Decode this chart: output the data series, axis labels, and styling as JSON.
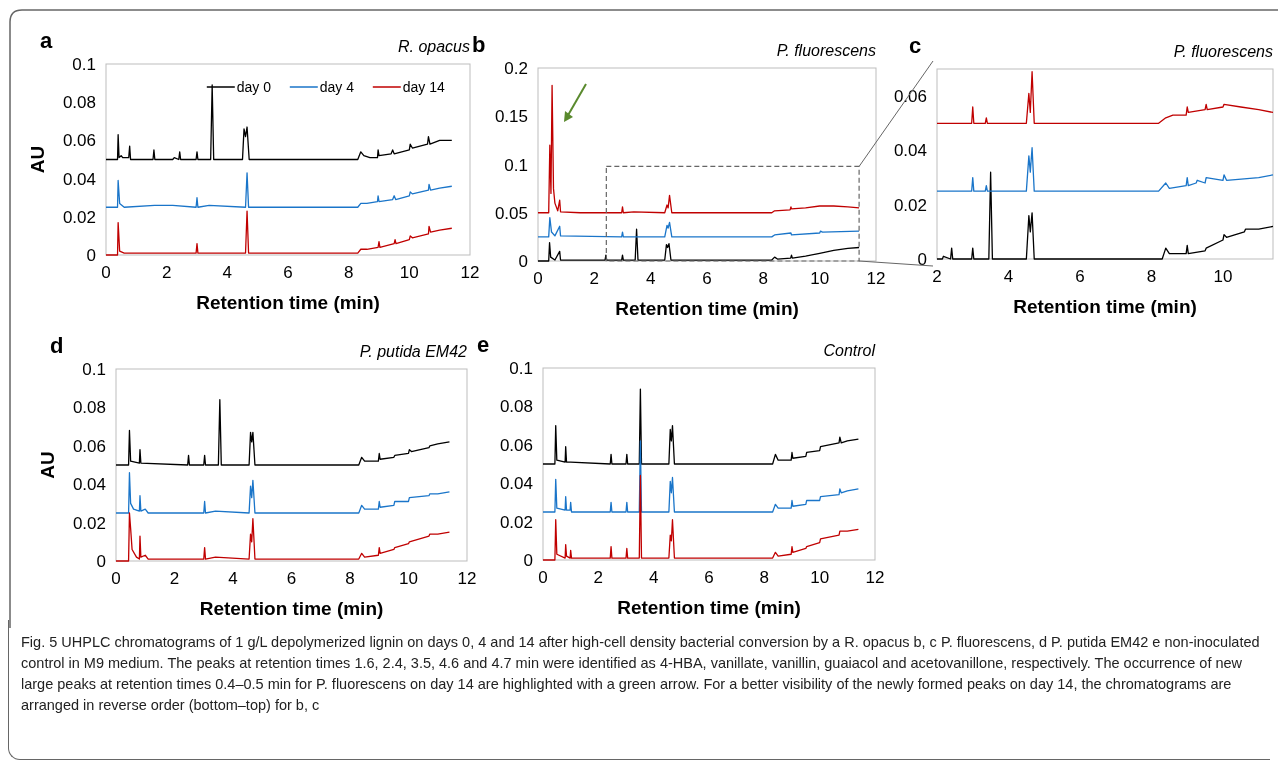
{
  "chart_data": [
    {
      "type": "line",
      "title": "a",
      "subtitle": "R. opacus",
      "xlabel": "Retention time (min)",
      "ylabel": "AU",
      "xlim": [
        0,
        12
      ],
      "xticks": [
        0,
        2,
        4,
        6,
        8,
        10,
        12
      ],
      "ylim": [
        0,
        0.1
      ],
      "yticks": [
        0,
        0.02,
        0.04,
        0.06,
        0.08,
        0.1
      ],
      "legend": "top right",
      "annotations": [
        "Fig. 5 UHPLC chromatograms of 1 g/L depolymerized lignin on days 0, 4 and 14 after high-cell density bacterial conversion by a R. opacus b, c P. fluorescens, d P. putida EM42 e non-inoculated control in M9 medium. The peaks at retention times 1.6, 2.4, 3.5, 4.6 and 4.7 min were identified as 4-HBA, vanillate, vanillin, guaiacol and acetovanillone, respectively. The occurrence of new large peaks at retention times 0.4–0.5 min for P. fluorescens on day 14 are highlighted with a green arrow. For a better visibility of the newly formed peaks on day 14, the chromatograms are arranged in reverse order (bottom–top) for b, c"
      ],
      "series": [
        {
          "name": "day 0",
          "color": "#000000",
          "x": [
            0,
            0.38,
            0.4,
            0.43,
            0.5,
            0.55,
            0.75,
            0.78,
            0.81,
            1.55,
            1.58,
            1.61,
            2.2,
            2.25,
            2.4,
            2.43,
            2.46,
            2.97,
            3.0,
            3.03,
            3.45,
            3.5,
            3.55,
            4.5,
            4.55,
            4.6,
            4.65,
            4.72,
            5.5,
            8.3,
            8.4,
            8.5,
            8.7,
            8.95,
            8.97,
            9.0,
            9.4,
            9.45,
            9.5,
            10.0,
            10.03,
            10.1,
            10.6,
            10.63,
            10.68,
            11.0,
            11.4
          ],
          "values": [
            0.05,
            0.05,
            0.063,
            0.051,
            0.052,
            0.051,
            0.051,
            0.057,
            0.05,
            0.05,
            0.055,
            0.05,
            0.05,
            0.051,
            0.05,
            0.054,
            0.05,
            0.05,
            0.054,
            0.05,
            0.05,
            0.089,
            0.05,
            0.05,
            0.066,
            0.062,
            0.067,
            0.05,
            0.05,
            0.05,
            0.054,
            0.052,
            0.051,
            0.051,
            0.055,
            0.052,
            0.053,
            0.055,
            0.053,
            0.055,
            0.058,
            0.056,
            0.058,
            0.062,
            0.058,
            0.06,
            0.06
          ]
        },
        {
          "name": "day 4",
          "color": "#1a75c9",
          "x": [
            0,
            0.38,
            0.4,
            0.45,
            0.6,
            1.6,
            2.2,
            2.97,
            3.0,
            3.03,
            3.4,
            4.6,
            4.65,
            4.7,
            8.3,
            8.4,
            8.6,
            8.95,
            8.97,
            9.0,
            9.45,
            9.5,
            9.55,
            10.0,
            10.03,
            10.1,
            10.63,
            10.65,
            10.7,
            11.0,
            11.4
          ],
          "values": [
            0.025,
            0.025,
            0.039,
            0.027,
            0.025,
            0.026,
            0.026,
            0.025,
            0.03,
            0.025,
            0.026,
            0.025,
            0.043,
            0.025,
            0.025,
            0.027,
            0.027,
            0.028,
            0.031,
            0.028,
            0.029,
            0.031,
            0.029,
            0.031,
            0.033,
            0.032,
            0.034,
            0.037,
            0.034,
            0.035,
            0.036
          ]
        },
        {
          "name": "day 14",
          "color": "#c00000",
          "x": [
            0,
            0.38,
            0.4,
            0.45,
            0.6,
            1.6,
            2.97,
            3.0,
            3.03,
            3.4,
            4.6,
            4.65,
            4.7,
            8.3,
            8.4,
            8.6,
            8.97,
            9.0,
            9.03,
            9.5,
            9.53,
            9.56,
            10.0,
            10.03,
            10.1,
            10.63,
            10.65,
            10.7,
            11.0,
            11.4
          ],
          "values": [
            0,
            0,
            0.017,
            0.002,
            0.001,
            0.001,
            0.001,
            0.006,
            0.001,
            0.001,
            0.001,
            0.023,
            0.001,
            0.001,
            0.003,
            0.003,
            0.004,
            0.007,
            0.004,
            0.006,
            0.008,
            0.006,
            0.008,
            0.01,
            0.009,
            0.011,
            0.015,
            0.012,
            0.013,
            0.014
          ]
        }
      ]
    },
    {
      "type": "line",
      "title": "b",
      "subtitle": "P. fluorescens",
      "xlabel": "Retention time (min)",
      "xlim": [
        0,
        12
      ],
      "xticks": [
        0,
        2,
        4,
        6,
        8,
        10,
        12
      ],
      "ylim": [
        0,
        0.2
      ],
      "yticks": [
        0,
        0.05,
        0.1,
        0.15,
        0.2
      ],
      "series": [
        {
          "color": "#000000",
          "x": [
            0,
            0.38,
            0.41,
            0.45,
            0.6,
            0.77,
            0.8,
            2.38,
            2.41,
            2.44,
            2.97,
            3.0,
            3.03,
            3.45,
            3.5,
            3.55,
            4.5,
            4.56,
            4.6,
            4.65,
            4.72,
            8.3,
            8.4,
            8.5,
            8.97,
            9.0,
            9.03,
            9.5,
            10.0,
            10.5,
            11.0,
            11.4
          ],
          "values": [
            0,
            0,
            0.019,
            0.004,
            0.001,
            0.01,
            0.001,
            0.001,
            0.006,
            0.001,
            0.001,
            0.006,
            0.001,
            0.001,
            0.033,
            0.001,
            0.001,
            0.017,
            0.014,
            0.018,
            0.001,
            0.001,
            0.004,
            0.002,
            0.003,
            0.006,
            0.003,
            0.005,
            0.008,
            0.011,
            0.013,
            0.014
          ]
        },
        {
          "color": "#1a75c9",
          "x": [
            0,
            0.38,
            0.42,
            0.48,
            0.6,
            0.77,
            0.8,
            2.97,
            3.0,
            3.03,
            4.5,
            4.58,
            4.62,
            4.67,
            4.75,
            8.3,
            8.4,
            8.98,
            9.0,
            10.0,
            10.03,
            10.1,
            11.4
          ],
          "values": [
            0.025,
            0.025,
            0.045,
            0.03,
            0.026,
            0.036,
            0.026,
            0.025,
            0.03,
            0.025,
            0.025,
            0.037,
            0.034,
            0.04,
            0.025,
            0.025,
            0.027,
            0.029,
            0.027,
            0.029,
            0.031,
            0.03,
            0.031
          ]
        },
        {
          "color": "#c00000",
          "x": [
            0,
            0.38,
            0.42,
            0.46,
            0.5,
            0.55,
            0.6,
            0.7,
            0.77,
            0.8,
            1.5,
            2.97,
            3.0,
            3.03,
            3.4,
            4.5,
            4.58,
            4.62,
            4.67,
            4.75,
            8.3,
            8.4,
            8.95,
            8.98,
            9.0,
            9.5,
            10.0,
            10.5,
            11.0,
            11.4
          ],
          "values": [
            0.05,
            0.05,
            0.12,
            0.07,
            0.182,
            0.075,
            0.06,
            0.052,
            0.063,
            0.051,
            0.05,
            0.05,
            0.056,
            0.05,
            0.051,
            0.05,
            0.058,
            0.055,
            0.068,
            0.05,
            0.05,
            0.052,
            0.053,
            0.056,
            0.054,
            0.055,
            0.057,
            0.057,
            0.056,
            0.055
          ]
        }
      ]
    },
    {
      "type": "line",
      "title": "c",
      "subtitle": "P. fluorescens",
      "xlabel": "Retention time (min)",
      "xlim": [
        2,
        11.4
      ],
      "xticks": [
        2,
        4,
        6,
        8,
        10
      ],
      "ylim": [
        0,
        0.07
      ],
      "yticks": [
        0,
        0.02,
        0.04,
        0.06
      ],
      "series": [
        {
          "color": "#000000",
          "x": [
            2,
            2.15,
            2.18,
            2.38,
            2.41,
            2.44,
            2.97,
            3.0,
            3.03,
            3.45,
            3.5,
            3.55,
            4.5,
            4.57,
            4.61,
            4.66,
            4.72,
            8.3,
            8.4,
            8.5,
            8.97,
            9.0,
            9.03,
            9.5,
            9.53,
            10.0,
            10.03,
            10.1,
            10.6,
            10.63,
            11.0,
            11.4
          ],
          "values": [
            0,
            0,
            0.001,
            0,
            0.004,
            0,
            0,
            0.004,
            0,
            0,
            0.032,
            0,
            0,
            0.016,
            0.01,
            0.017,
            0,
            0,
            0.004,
            0.002,
            0.002,
            0.005,
            0.002,
            0.003,
            0.004,
            0.007,
            0.009,
            0.008,
            0.01,
            0.011,
            0.011,
            0.012
          ]
        },
        {
          "color": "#1a75c9",
          "x": [
            2,
            2.97,
            3.0,
            3.03,
            3.35,
            3.38,
            3.41,
            4.5,
            4.57,
            4.61,
            4.66,
            4.72,
            8.2,
            8.4,
            8.5,
            8.97,
            9.0,
            9.03,
            9.25,
            9.28,
            9.5,
            9.53,
            10.0,
            10.03,
            10.1,
            11.0,
            11.4
          ],
          "values": [
            0.025,
            0.025,
            0.03,
            0.025,
            0.025,
            0.027,
            0.025,
            0.025,
            0.038,
            0.032,
            0.041,
            0.025,
            0.025,
            0.028,
            0.026,
            0.027,
            0.03,
            0.027,
            0.028,
            0.029,
            0.028,
            0.03,
            0.029,
            0.031,
            0.029,
            0.03,
            0.031
          ]
        },
        {
          "color": "#c00000",
          "x": [
            2,
            2.97,
            3.0,
            3.03,
            3.35,
            3.38,
            3.41,
            4.5,
            4.57,
            4.61,
            4.66,
            4.72,
            8.2,
            8.4,
            8.6,
            8.97,
            9.0,
            9.03,
            9.5,
            9.53,
            9.56,
            10.0,
            10.03,
            10.5,
            11.0,
            11.4
          ],
          "values": [
            0.05,
            0.05,
            0.056,
            0.05,
            0.05,
            0.052,
            0.05,
            0.05,
            0.061,
            0.054,
            0.069,
            0.05,
            0.05,
            0.052,
            0.053,
            0.053,
            0.056,
            0.054,
            0.055,
            0.057,
            0.055,
            0.056,
            0.057,
            0.056,
            0.055,
            0.054
          ]
        }
      ]
    },
    {
      "type": "line",
      "title": "d",
      "subtitle": "P. putida EM42",
      "xlabel": "Retention time (min)",
      "ylabel": "AU",
      "xlim": [
        0,
        12
      ],
      "xticks": [
        0,
        2,
        4,
        6,
        8,
        10,
        12
      ],
      "ylim": [
        0,
        0.1
      ],
      "yticks": [
        0,
        0.02,
        0.04,
        0.06,
        0.08,
        0.1
      ],
      "series": [
        {
          "color": "#000000",
          "x": [
            0,
            0.43,
            0.46,
            0.5,
            0.8,
            0.82,
            0.85,
            2.45,
            2.48,
            2.51,
            3.0,
            3.03,
            3.06,
            3.5,
            3.55,
            3.6,
            4.55,
            4.6,
            4.64,
            4.68,
            4.75,
            8.3,
            8.4,
            8.5,
            8.97,
            9.0,
            9.03,
            9.5,
            9.53,
            10.0,
            10.03,
            10.1,
            10.7,
            10.73,
            11.0,
            11.4
          ],
          "values": [
            0.05,
            0.05,
            0.068,
            0.052,
            0.051,
            0.058,
            0.051,
            0.05,
            0.055,
            0.05,
            0.05,
            0.055,
            0.05,
            0.05,
            0.084,
            0.05,
            0.05,
            0.067,
            0.062,
            0.067,
            0.05,
            0.05,
            0.054,
            0.052,
            0.052,
            0.056,
            0.053,
            0.054,
            0.055,
            0.056,
            0.058,
            0.057,
            0.059,
            0.06,
            0.061,
            0.062
          ]
        },
        {
          "color": "#1a75c9",
          "x": [
            0,
            0.43,
            0.46,
            0.5,
            0.6,
            0.8,
            0.82,
            0.85,
            1.0,
            1.1,
            3.0,
            3.03,
            3.06,
            3.4,
            4.55,
            4.6,
            4.64,
            4.68,
            4.75,
            8.3,
            8.4,
            8.5,
            8.97,
            9.0,
            9.03,
            9.5,
            9.53,
            10.0,
            10.03,
            10.7,
            10.73,
            11.0,
            11.4
          ],
          "values": [
            0.025,
            0.025,
            0.046,
            0.03,
            0.027,
            0.026,
            0.034,
            0.026,
            0.027,
            0.025,
            0.025,
            0.031,
            0.025,
            0.026,
            0.025,
            0.039,
            0.033,
            0.042,
            0.025,
            0.025,
            0.029,
            0.027,
            0.027,
            0.031,
            0.028,
            0.029,
            0.031,
            0.031,
            0.033,
            0.034,
            0.035,
            0.035,
            0.036
          ]
        },
        {
          "color": "#c00000",
          "x": [
            0,
            0.43,
            0.46,
            0.5,
            0.55,
            0.7,
            0.8,
            0.82,
            0.85,
            1.0,
            1.1,
            3.0,
            3.03,
            3.06,
            3.4,
            4.55,
            4.6,
            4.64,
            4.68,
            4.75,
            8.3,
            8.4,
            8.5,
            8.97,
            9.0,
            9.03,
            9.5,
            9.53,
            10.0,
            10.03,
            10.7,
            10.73,
            11.0,
            11.4
          ],
          "values": [
            0,
            0,
            0.025,
            0.017,
            0.006,
            0.002,
            0.001,
            0.013,
            0.002,
            0.003,
            0.001,
            0.001,
            0.007,
            0.001,
            0.002,
            0.001,
            0.014,
            0.01,
            0.022,
            0.001,
            0.001,
            0.004,
            0.002,
            0.003,
            0.007,
            0.004,
            0.006,
            0.007,
            0.009,
            0.01,
            0.013,
            0.014,
            0.014,
            0.015
          ]
        }
      ]
    },
    {
      "type": "line",
      "title": "e",
      "subtitle": "Control",
      "xlabel": "Retention time (min)",
      "xlim": [
        0,
        12
      ],
      "xticks": [
        0,
        2,
        4,
        6,
        8,
        10,
        12
      ],
      "ylim": [
        0,
        0.1
      ],
      "yticks": [
        0,
        0.02,
        0.04,
        0.06,
        0.08,
        0.1
      ],
      "series": [
        {
          "color": "#000000",
          "x": [
            0,
            0.43,
            0.46,
            0.5,
            0.8,
            0.82,
            0.85,
            1.0,
            2.43,
            2.46,
            2.49,
            3.0,
            3.03,
            3.06,
            3.48,
            3.52,
            3.56,
            4.55,
            4.6,
            4.64,
            4.68,
            4.75,
            8.3,
            8.4,
            8.5,
            8.97,
            9.0,
            9.03,
            9.5,
            9.53,
            10.0,
            10.03,
            10.7,
            10.73,
            10.78,
            11.0,
            11.4
          ],
          "values": [
            0.05,
            0.05,
            0.07,
            0.052,
            0.051,
            0.059,
            0.051,
            0.051,
            0.05,
            0.055,
            0.05,
            0.05,
            0.055,
            0.05,
            0.05,
            0.089,
            0.05,
            0.05,
            0.068,
            0.062,
            0.07,
            0.05,
            0.05,
            0.055,
            0.052,
            0.052,
            0.056,
            0.053,
            0.054,
            0.056,
            0.057,
            0.059,
            0.061,
            0.064,
            0.061,
            0.062,
            0.063
          ]
        },
        {
          "color": "#1a75c9",
          "x": [
            0,
            0.43,
            0.46,
            0.5,
            0.8,
            0.82,
            0.85,
            0.98,
            1.0,
            1.03,
            2.43,
            2.46,
            2.49,
            3.0,
            3.03,
            3.06,
            3.48,
            3.52,
            3.56,
            4.55,
            4.6,
            4.64,
            4.68,
            4.75,
            8.3,
            8.4,
            8.5,
            8.97,
            9.0,
            9.03,
            9.5,
            9.53,
            10.0,
            10.03,
            10.7,
            10.73,
            10.78,
            11.0,
            11.4
          ],
          "values": [
            0.025,
            0.025,
            0.042,
            0.027,
            0.026,
            0.033,
            0.026,
            0.026,
            0.03,
            0.025,
            0.025,
            0.03,
            0.025,
            0.025,
            0.03,
            0.025,
            0.025,
            0.062,
            0.025,
            0.025,
            0.041,
            0.035,
            0.043,
            0.025,
            0.025,
            0.029,
            0.027,
            0.027,
            0.031,
            0.028,
            0.029,
            0.031,
            0.031,
            0.033,
            0.034,
            0.037,
            0.035,
            0.036,
            0.037
          ]
        },
        {
          "color": "#c00000",
          "x": [
            0,
            0.43,
            0.46,
            0.5,
            0.8,
            0.82,
            0.85,
            0.98,
            1.0,
            1.03,
            2.43,
            2.46,
            2.49,
            3.0,
            3.03,
            3.06,
            3.48,
            3.52,
            3.56,
            4.55,
            4.6,
            4.64,
            4.68,
            4.75,
            8.3,
            8.4,
            8.5,
            8.97,
            9.0,
            9.03,
            9.5,
            9.53,
            10.0,
            10.03,
            10.7,
            10.73,
            11.0,
            11.4
          ],
          "values": [
            0,
            0,
            0.021,
            0.003,
            0.001,
            0.008,
            0.002,
            0.001,
            0.005,
            0.001,
            0.001,
            0.007,
            0.001,
            0.001,
            0.006,
            0.001,
            0.001,
            0.044,
            0.001,
            0.001,
            0.013,
            0.01,
            0.021,
            0.001,
            0.001,
            0.004,
            0.002,
            0.003,
            0.007,
            0.004,
            0.006,
            0.007,
            0.009,
            0.011,
            0.013,
            0.015,
            0.015,
            0.016
          ]
        }
      ]
    }
  ]
}
